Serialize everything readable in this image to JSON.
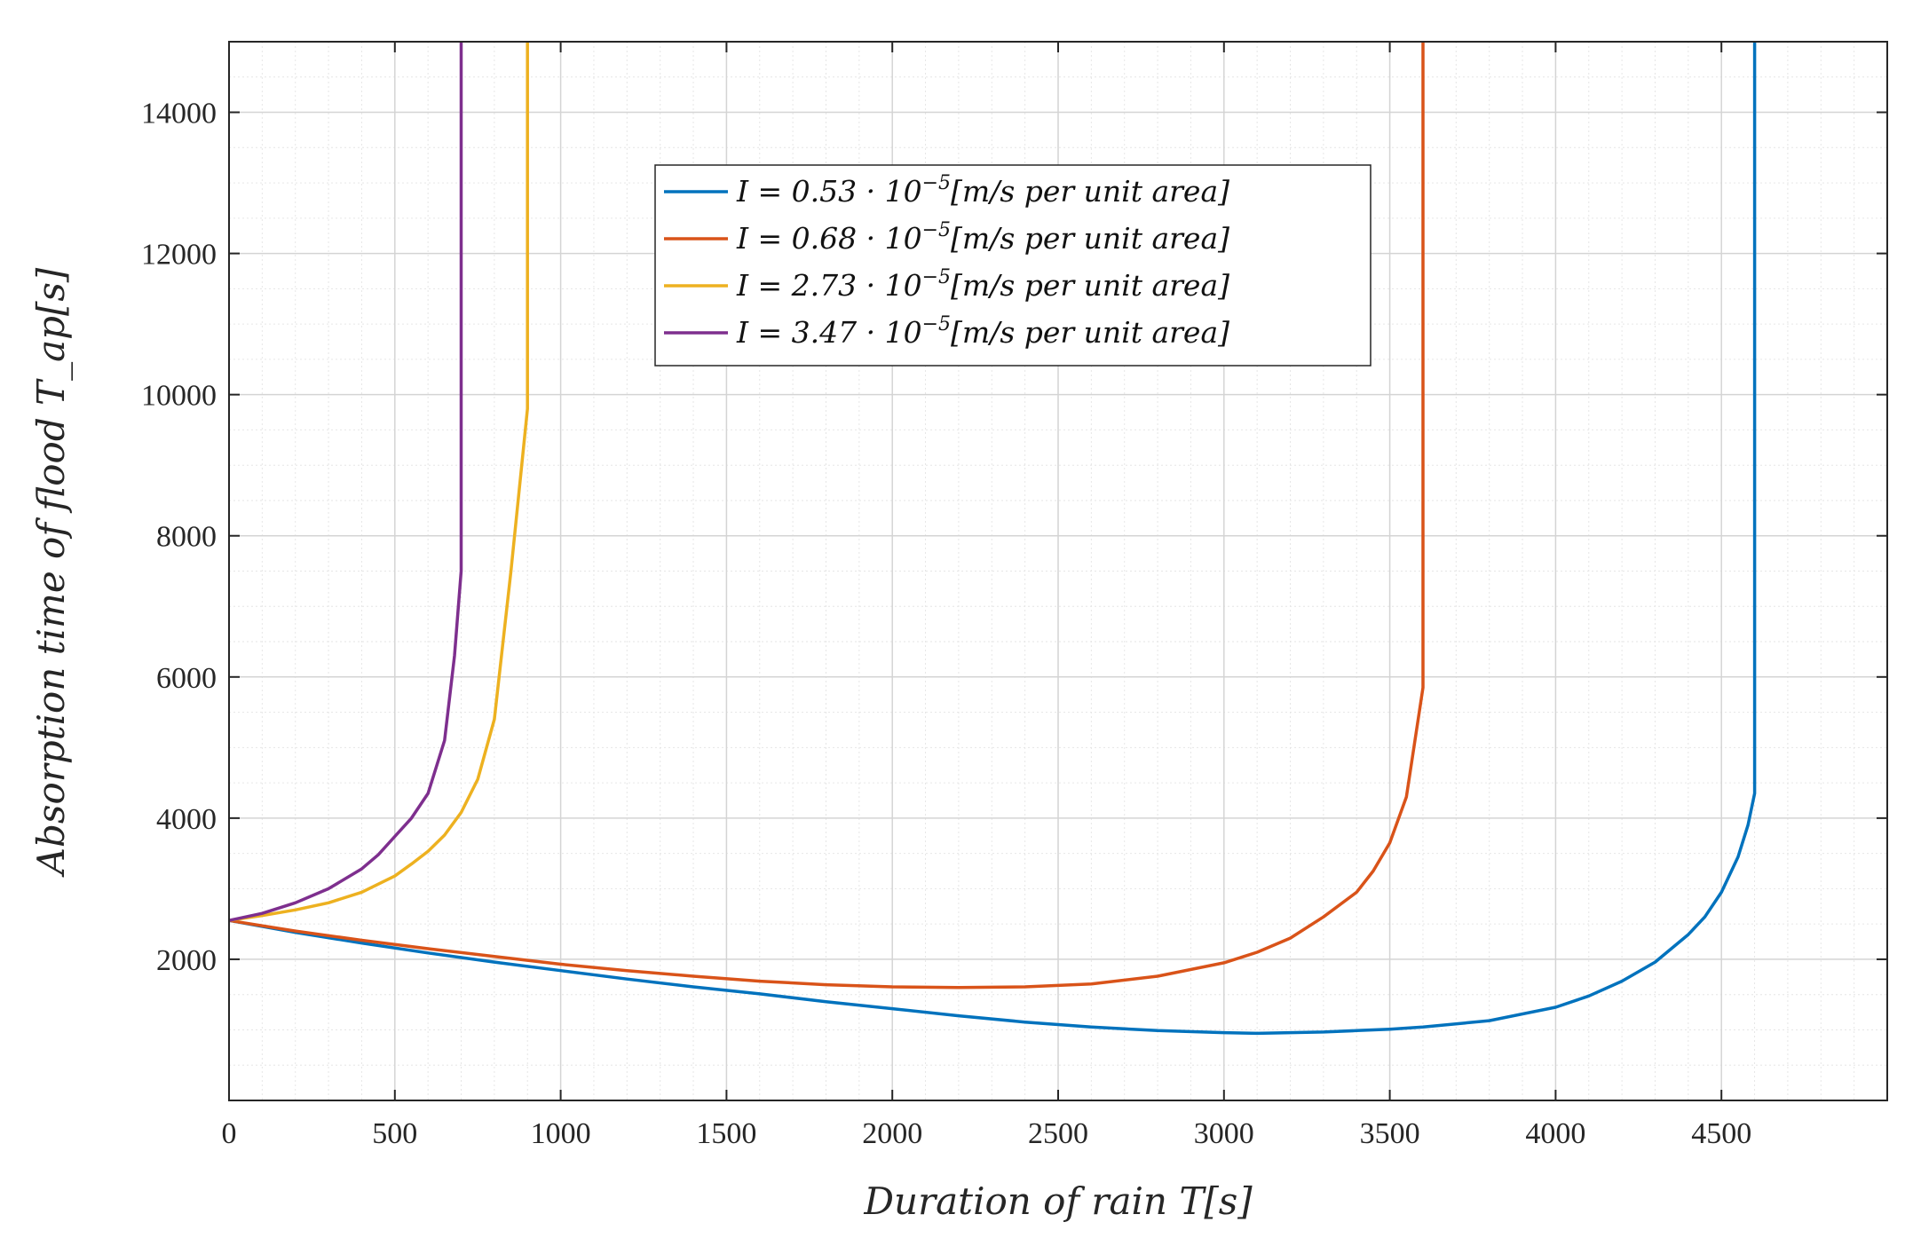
{
  "chart_data": {
    "type": "line",
    "title": "",
    "xlabel": "Duration of rain T[s]",
    "ylabel": "Absorption time of flood T_ap[s]",
    "xlim": [
      0,
      5000
    ],
    "ylim": [
      0,
      15000
    ],
    "x_ticks": [
      0,
      500,
      1000,
      1500,
      2000,
      2500,
      3000,
      3500,
      4000,
      4500
    ],
    "y_ticks": [
      2000,
      4000,
      6000,
      8000,
      10000,
      12000,
      14000
    ],
    "x_tick_labels": [
      "0",
      "500",
      "1000",
      "1500",
      "2000",
      "2500",
      "3000",
      "3500",
      "4000",
      "4500"
    ],
    "y_tick_labels": [
      "2000",
      "4000",
      "6000",
      "8000",
      "10000",
      "12000",
      "14000"
    ],
    "grid": true,
    "minor_grid": true,
    "legend_position": "top-center",
    "series": [
      {
        "name": "I = 0.53 · 10^-5[m/s per unit area]",
        "legend_prefix": "I = 0.53 · 10",
        "legend_exp": "−5",
        "legend_suffix": "[m/s per unit area]",
        "color": "#0072BD",
        "x": [
          0,
          200,
          400,
          600,
          800,
          1000,
          1200,
          1400,
          1600,
          1800,
          2000,
          2200,
          2400,
          2600,
          2800,
          3000,
          3100,
          3200,
          3300,
          3400,
          3500,
          3600,
          3800,
          4000,
          4100,
          4200,
          4300,
          4400,
          4450,
          4500,
          4550,
          4580,
          4600,
          4600
        ],
        "y": [
          2550,
          2380,
          2230,
          2090,
          1960,
          1840,
          1720,
          1610,
          1510,
          1400,
          1300,
          1200,
          1110,
          1040,
          990,
          960,
          950,
          960,
          970,
          990,
          1010,
          1040,
          1130,
          1320,
          1480,
          1690,
          1960,
          2350,
          2600,
          2950,
          3450,
          3900,
          4350,
          15000
        ]
      },
      {
        "name": "I = 0.68 · 10^-5[m/s per unit area]",
        "legend_prefix": "I = 0.68 · 10",
        "legend_exp": "−5",
        "legend_suffix": "[m/s per unit area]",
        "color": "#D95319",
        "x": [
          0,
          200,
          400,
          600,
          800,
          1000,
          1200,
          1400,
          1600,
          1800,
          2000,
          2200,
          2400,
          2600,
          2800,
          3000,
          3100,
          3200,
          3300,
          3400,
          3450,
          3500,
          3550,
          3600,
          3600
        ],
        "y": [
          2550,
          2400,
          2270,
          2150,
          2040,
          1930,
          1840,
          1760,
          1690,
          1640,
          1610,
          1600,
          1610,
          1650,
          1760,
          1950,
          2100,
          2300,
          2600,
          2950,
          3250,
          3650,
          4300,
          5850,
          15000
        ]
      },
      {
        "name": "I = 2.73 · 10^-5[m/s per unit area]",
        "legend_prefix": "I = 2.73 · 10",
        "legend_exp": "−5",
        "legend_suffix": "[m/s per unit area]",
        "color": "#EDB120",
        "x": [
          0,
          100,
          200,
          300,
          400,
          500,
          550,
          600,
          650,
          700,
          750,
          800,
          850,
          900,
          900
        ],
        "y": [
          2550,
          2620,
          2700,
          2800,
          2950,
          3180,
          3350,
          3530,
          3760,
          4080,
          4550,
          5400,
          7500,
          9800,
          15000
        ]
      },
      {
        "name": "I = 3.47 · 10^-5[m/s per unit area]",
        "legend_prefix": "I = 3.47 · 10",
        "legend_exp": "−5",
        "legend_suffix": "[m/s per unit area]",
        "color": "#7E2F8E",
        "x": [
          0,
          100,
          200,
          300,
          400,
          450,
          500,
          550,
          600,
          650,
          680,
          700,
          700
        ],
        "y": [
          2550,
          2650,
          2800,
          3000,
          3280,
          3480,
          3740,
          4000,
          4350,
          5100,
          6300,
          7500,
          15000
        ]
      }
    ]
  }
}
